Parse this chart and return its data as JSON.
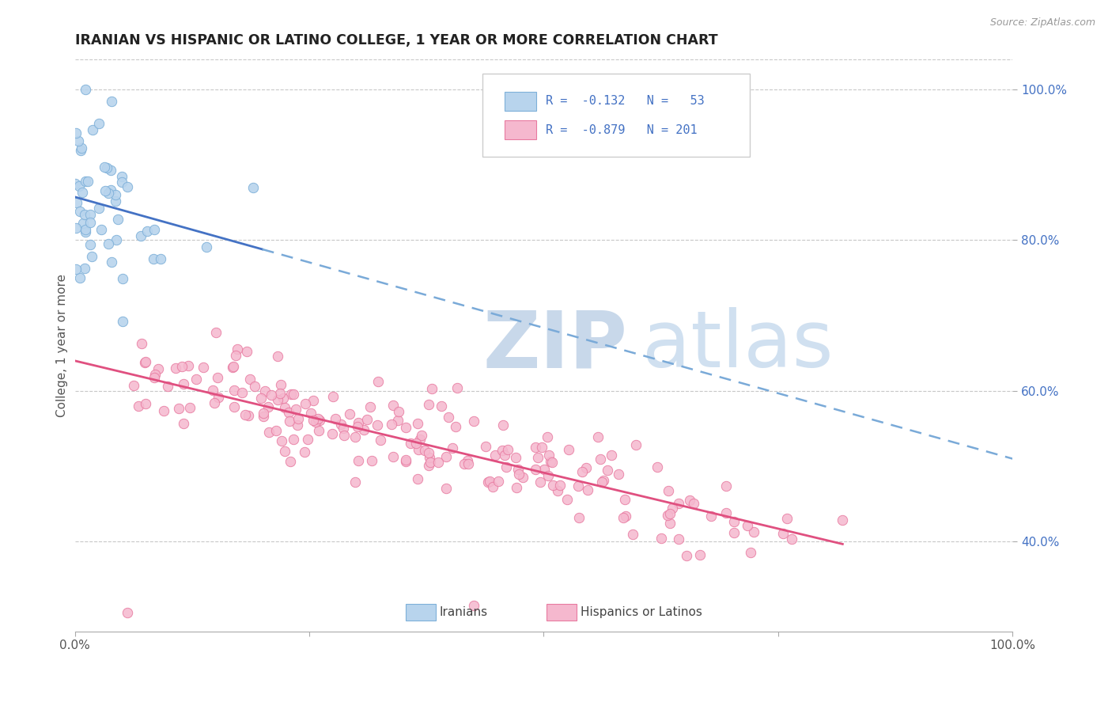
{
  "title": "IRANIAN VS HISPANIC OR LATINO COLLEGE, 1 YEAR OR MORE CORRELATION CHART",
  "source_text": "Source: ZipAtlas.com",
  "ylabel": "College, 1 year or more",
  "xlim": [
    0.0,
    1.0
  ],
  "ylim": [
    0.28,
    1.04
  ],
  "y_ticks_right": [
    1.0,
    0.8,
    0.6,
    0.4
  ],
  "y_tick_labels_right": [
    "100.0%",
    "80.0%",
    "60.0%",
    "40.0%"
  ],
  "background_color": "#ffffff",
  "grid_color": "#c8c8c8",
  "iranians_N": 53,
  "iranians_R": -0.132,
  "hispanics_N": 201,
  "hispanics_R": -0.879,
  "iranians_color_fill": "#b8d4ed",
  "iranians_color_edge": "#7eb0d9",
  "hispanics_color_fill": "#f5b8ce",
  "hispanics_color_edge": "#e87aa0",
  "trend_iranian_solid_color": "#4472c4",
  "trend_iranian_dash_color": "#7aaad8",
  "trend_hispanic_color": "#e05080",
  "legend_text_color": "#4472c4",
  "right_tick_color": "#4472c4",
  "watermark_zip_color": "#c8d8ea",
  "watermark_atlas_color": "#d0e0f0",
  "source_color": "#999999"
}
